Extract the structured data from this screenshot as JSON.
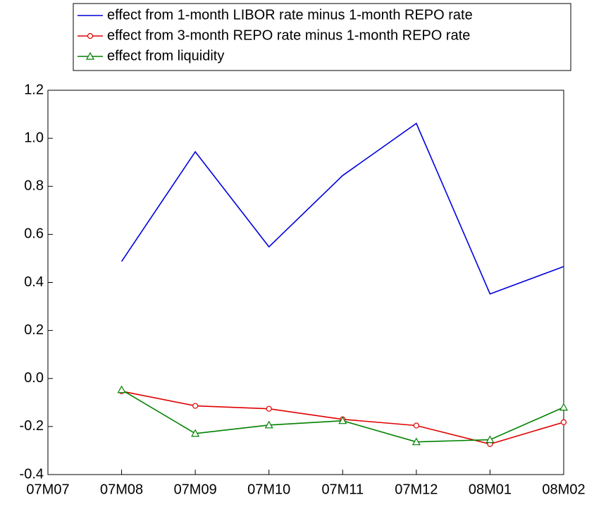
{
  "chart_data": {
    "type": "line",
    "categories": [
      "07M07",
      "07M08",
      "07M09",
      "07M10",
      "07M11",
      "07M12",
      "08M01",
      "08M02"
    ],
    "series": [
      {
        "name": "effect from 1-month LIBOR rate minus 1-month REPO rate",
        "color": "#0000dd",
        "marker": "none",
        "values": [
          null,
          0.487,
          0.944,
          0.548,
          0.845,
          1.062,
          0.352,
          0.466
        ]
      },
      {
        "name": "effect from 3-month REPO rate minus 1-month REPO rate",
        "color": "#e00000",
        "marker": "circle",
        "values": [
          null,
          -0.053,
          -0.114,
          -0.126,
          -0.17,
          -0.196,
          -0.273,
          -0.182
        ]
      },
      {
        "name": "effect from liquidity",
        "color": "#008000",
        "marker": "triangle",
        "values": [
          null,
          -0.047,
          -0.229,
          -0.194,
          -0.176,
          -0.264,
          -0.255,
          -0.12
        ]
      }
    ],
    "ylim": [
      -0.4,
      1.2
    ],
    "yticks": [
      -0.4,
      -0.2,
      {
        "value": 0,
        "label": "0.0"
      },
      0.2,
      0.4,
      0.6,
      0.8,
      {
        "value": 1,
        "label": "1.0"
      },
      1.2
    ]
  }
}
